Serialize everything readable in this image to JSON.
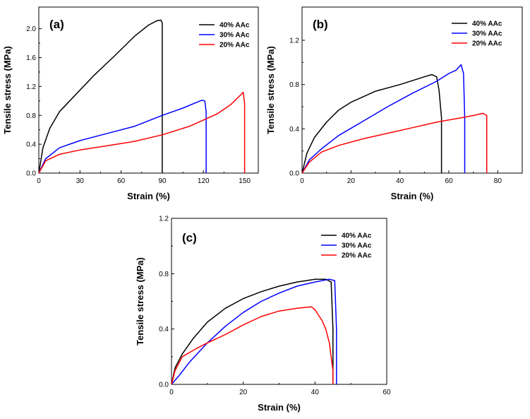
{
  "chart_data": [
    {
      "type": "line",
      "panel": "(a)",
      "xlabel": "Strain (%)",
      "ylabel": "Tensile stress (MPa)",
      "xlim": [
        0,
        160
      ],
      "ylim": [
        0,
        2.3
      ],
      "xticks": [
        0,
        30,
        60,
        90,
        120,
        150
      ],
      "xtick_labels": [
        "0",
        "30",
        "60",
        "90",
        "120",
        "150"
      ],
      "yticks": [
        0,
        0.4,
        0.8,
        1.2,
        1.6,
        2.0
      ],
      "ytick_labels": [
        "0.0",
        "0.4",
        "0.8",
        "1.2",
        "1.6",
        "2.0"
      ],
      "legend_position": "top-right",
      "series": [
        {
          "name": "40% AAc",
          "color": "#000000",
          "x": [
            0,
            3,
            8,
            15,
            25,
            40,
            55,
            70,
            80,
            86,
            89,
            90,
            90
          ],
          "y": [
            0,
            0.35,
            0.62,
            0.85,
            1.05,
            1.35,
            1.62,
            1.9,
            2.05,
            2.11,
            2.12,
            2.08,
            0
          ]
        },
        {
          "name": "30% AAc",
          "color": "#0000ff",
          "x": [
            0,
            5,
            15,
            30,
            50,
            70,
            90,
            105,
            115,
            119,
            121,
            122,
            122
          ],
          "y": [
            0,
            0.2,
            0.35,
            0.45,
            0.55,
            0.65,
            0.8,
            0.9,
            0.98,
            1.01,
            1.0,
            0.85,
            0
          ]
        },
        {
          "name": "20% AAc",
          "color": "#ff0000",
          "x": [
            0,
            5,
            15,
            30,
            50,
            70,
            90,
            110,
            130,
            140,
            147,
            149,
            150,
            150
          ],
          "y": [
            0,
            0.17,
            0.26,
            0.32,
            0.38,
            0.44,
            0.53,
            0.65,
            0.82,
            0.95,
            1.08,
            1.12,
            0.97,
            0
          ]
        }
      ]
    },
    {
      "type": "line",
      "panel": "(b)",
      "xlabel": "Strain (%)",
      "ylabel": "Tensile stress (MPa)",
      "xlim": [
        0,
        90
      ],
      "ylim": [
        0,
        1.5
      ],
      "xticks": [
        0,
        20,
        40,
        60,
        80
      ],
      "xtick_labels": [
        "0",
        "20",
        "40",
        "60",
        "80"
      ],
      "yticks": [
        0,
        0.4,
        0.8,
        1.2
      ],
      "ytick_labels": [
        "0.0",
        "0.4",
        "0.8",
        "1.2"
      ],
      "legend_position": "top-right",
      "series": [
        {
          "name": "40% AAc",
          "color": "#000000",
          "x": [
            0,
            2,
            5,
            10,
            15,
            20,
            30,
            40,
            50,
            53,
            55,
            56,
            57,
            57
          ],
          "y": [
            0,
            0.18,
            0.32,
            0.46,
            0.57,
            0.64,
            0.74,
            0.8,
            0.87,
            0.89,
            0.87,
            0.75,
            0.5,
            0
          ]
        },
        {
          "name": "30% AAc",
          "color": "#0000ff",
          "x": [
            0,
            3,
            8,
            15,
            25,
            35,
            45,
            55,
            60,
            63,
            65,
            66,
            66.5,
            66.5
          ],
          "y": [
            0,
            0.12,
            0.22,
            0.34,
            0.47,
            0.6,
            0.72,
            0.83,
            0.9,
            0.93,
            0.98,
            0.9,
            0.5,
            0
          ]
        },
        {
          "name": "20% AAc",
          "color": "#ff0000",
          "x": [
            0,
            3,
            8,
            15,
            25,
            35,
            45,
            55,
            65,
            70,
            74,
            75.5,
            75.5
          ],
          "y": [
            0,
            0.1,
            0.19,
            0.25,
            0.31,
            0.36,
            0.41,
            0.46,
            0.5,
            0.52,
            0.54,
            0.52,
            0
          ]
        }
      ]
    },
    {
      "type": "line",
      "panel": "(c)",
      "xlabel": "Strain (%)",
      "ylabel": "Tensile stress (MPa)",
      "xlim": [
        0,
        60
      ],
      "ylim": [
        0,
        1.2
      ],
      "xticks": [
        0,
        20,
        40,
        60
      ],
      "xtick_labels": [
        "0",
        "20",
        "40",
        "60"
      ],
      "yticks": [
        0,
        0.4,
        0.8,
        1.2
      ],
      "ytick_labels": [
        "0.0",
        "0.4",
        "0.8",
        "1.2"
      ],
      "legend_position": "top-right",
      "series": [
        {
          "name": "40% AAc",
          "color": "#000000",
          "x": [
            0,
            1,
            3,
            6,
            10,
            15,
            20,
            25,
            30,
            35,
            40,
            43,
            44.5,
            45,
            45
          ],
          "y": [
            0,
            0.12,
            0.22,
            0.33,
            0.45,
            0.55,
            0.62,
            0.67,
            0.71,
            0.74,
            0.76,
            0.76,
            0.74,
            0.4,
            0
          ]
        },
        {
          "name": "30% AAc",
          "color": "#0000ff",
          "x": [
            0,
            2,
            5,
            10,
            15,
            20,
            25,
            30,
            35,
            40,
            44,
            45.5,
            46,
            46
          ],
          "y": [
            0,
            0.06,
            0.16,
            0.3,
            0.42,
            0.52,
            0.6,
            0.66,
            0.71,
            0.74,
            0.76,
            0.75,
            0.4,
            0
          ]
        },
        {
          "name": "20% AAc",
          "color": "#ff0000",
          "x": [
            0,
            1,
            3,
            5,
            7,
            10,
            15,
            20,
            25,
            30,
            35,
            39,
            40,
            41,
            42,
            43,
            44,
            44.5,
            45,
            45
          ],
          "y": [
            0,
            0.1,
            0.2,
            0.23,
            0.26,
            0.3,
            0.36,
            0.43,
            0.49,
            0.53,
            0.55,
            0.56,
            0.54,
            0.5,
            0.46,
            0.4,
            0.3,
            0.2,
            0.1,
            0
          ]
        }
      ]
    }
  ]
}
